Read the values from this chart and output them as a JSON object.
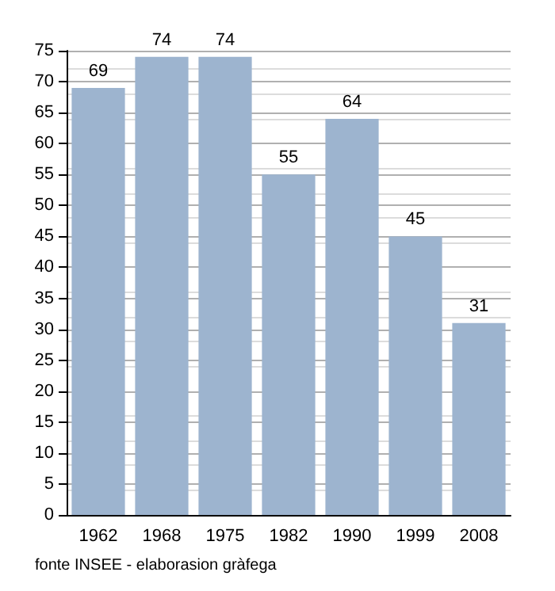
{
  "chart_data": {
    "type": "bar",
    "categories": [
      "1962",
      "1968",
      "1975",
      "1982",
      "1990",
      "1999",
      "2008"
    ],
    "values": [
      69,
      74,
      74,
      55,
      64,
      45,
      31
    ],
    "color": "#9db4cf",
    "ylim": [
      0,
      75
    ],
    "yticks": [
      0,
      5,
      10,
      15,
      20,
      25,
      30,
      35,
      40,
      45,
      50,
      55,
      60,
      65,
      70,
      75
    ],
    "grid": true,
    "data_labels": true,
    "annotations": [
      "fonte INSEE - elaborasion gràfega"
    ]
  }
}
